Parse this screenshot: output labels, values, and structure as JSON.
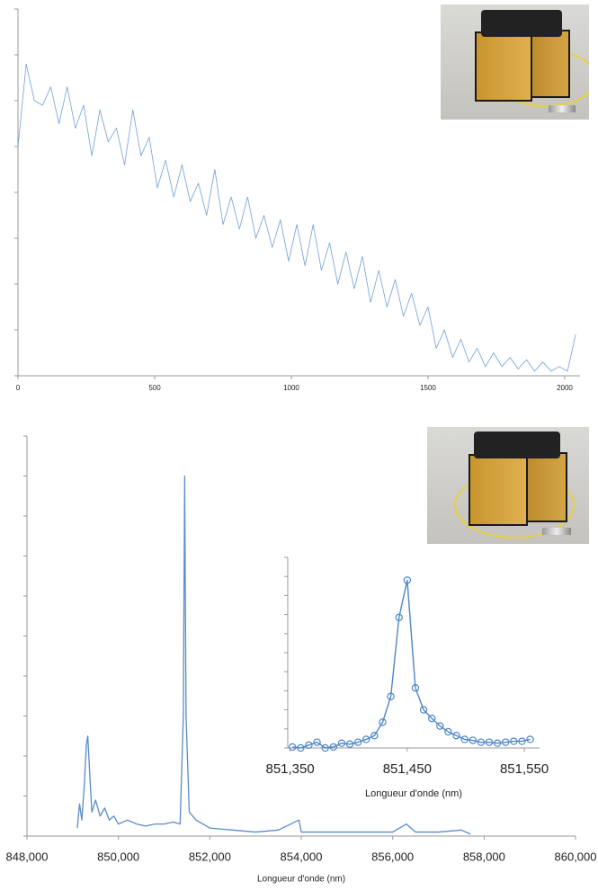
{
  "chart_data": [
    {
      "type": "line",
      "color": "#6f9fd8",
      "x": [
        0,
        30,
        60,
        90,
        120,
        150,
        180,
        210,
        240,
        270,
        300,
        330,
        360,
        390,
        420,
        450,
        480,
        510,
        540,
        570,
        600,
        630,
        660,
        690,
        720,
        750,
        780,
        810,
        840,
        870,
        900,
        930,
        960,
        990,
        1020,
        1050,
        1080,
        1110,
        1140,
        1170,
        1200,
        1230,
        1260,
        1290,
        1320,
        1350,
        1380,
        1410,
        1440,
        1470,
        1500,
        1530,
        1560,
        1590,
        1620,
        1650,
        1680,
        1710,
        1740,
        1770,
        1800,
        1830,
        1860,
        1890,
        1920,
        1950,
        1980,
        2010,
        2040
      ],
      "values": [
        5.0,
        6.8,
        6.0,
        5.9,
        6.3,
        5.5,
        6.3,
        5.4,
        5.9,
        4.8,
        5.8,
        5.1,
        5.4,
        4.6,
        5.8,
        4.8,
        5.2,
        4.1,
        4.7,
        3.9,
        4.6,
        3.8,
        4.2,
        3.5,
        4.5,
        3.3,
        3.9,
        3.2,
        3.9,
        3.0,
        3.5,
        2.8,
        3.4,
        2.5,
        3.3,
        2.4,
        3.3,
        2.3,
        2.9,
        2.0,
        2.7,
        1.9,
        2.6,
        1.6,
        2.3,
        1.5,
        2.1,
        1.3,
        1.8,
        1.1,
        1.5,
        0.6,
        1.0,
        0.4,
        0.8,
        0.3,
        0.6,
        0.2,
        0.5,
        0.2,
        0.4,
        0.15,
        0.35,
        0.1,
        0.3,
        0.1,
        0.2,
        0.1,
        0.9
      ],
      "xlim": [
        0,
        2056
      ],
      "xticks": [
        0,
        500,
        1000,
        1500,
        2000
      ],
      "ylim": [
        0,
        8
      ],
      "yticks": [
        0,
        1,
        2,
        3,
        4,
        5,
        6,
        7,
        8
      ]
    },
    {
      "type": "line",
      "color": "#5a8cc8",
      "x_label": "Longueur d'onde (nm)",
      "x": [
        849100,
        849150,
        849200,
        849250,
        849300,
        849330,
        849380,
        849420,
        849500,
        849600,
        849700,
        849800,
        849900,
        850000,
        850200,
        850400,
        850600,
        850800,
        851000,
        851200,
        851350,
        851420,
        851450,
        851480,
        851550,
        851700,
        852000,
        852500,
        853000,
        853500,
        853950,
        854000,
        854500,
        855000,
        855500,
        856000,
        856300,
        856500,
        857000,
        857500,
        857700
      ],
      "values": [
        0.2,
        0.8,
        0.4,
        1.2,
        2.3,
        2.5,
        1.4,
        0.6,
        0.9,
        0.5,
        0.7,
        0.4,
        0.5,
        0.3,
        0.4,
        0.3,
        0.25,
        0.3,
        0.3,
        0.35,
        0.3,
        3.0,
        9.0,
        3.0,
        0.6,
        0.4,
        0.2,
        0.15,
        0.1,
        0.15,
        0.4,
        0.1,
        0.1,
        0.1,
        0.1,
        0.1,
        0.3,
        0.1,
        0.1,
        0.15,
        0.05
      ],
      "xlim": [
        848000,
        860000
      ],
      "xticks": [
        {
          "value": 848000,
          "label": "848,000"
        },
        {
          "value": 850000,
          "label": "850,000"
        },
        {
          "value": 852000,
          "label": "852,000"
        },
        {
          "value": 854000,
          "label": "854,000"
        },
        {
          "value": 856000,
          "label": "856,000"
        },
        {
          "value": 858000,
          "label": "858,000"
        },
        {
          "value": 860000,
          "label": "860,000"
        }
      ],
      "ylim": [
        0,
        10
      ],
      "yticks": [
        0,
        1,
        2,
        3,
        4,
        5,
        6,
        7,
        8,
        9,
        10
      ]
    },
    {
      "type": "line",
      "color": "#4f86c6",
      "marker": "circle",
      "x_label": "Longueur d'onde (nm)",
      "x": [
        851352,
        851359,
        851366,
        851373,
        851380,
        851387,
        851394,
        851401,
        851408,
        851415,
        851422,
        851429,
        851436,
        851443,
        851450,
        851457,
        851464,
        851471,
        851478,
        851485,
        851492,
        851499,
        851506,
        851513,
        851520,
        851527,
        851534,
        851541,
        851548,
        851555
      ],
      "values": [
        0.05,
        0,
        0.15,
        0.3,
        0,
        0.05,
        0.25,
        0.2,
        0.3,
        0.45,
        0.65,
        1.35,
        2.7,
        6.85,
        8.8,
        3.15,
        2.0,
        1.55,
        1.15,
        0.85,
        0.65,
        0.45,
        0.4,
        0.3,
        0.3,
        0.25,
        0.3,
        0.35,
        0.35,
        0.45
      ],
      "xlim": [
        851348,
        851563
      ],
      "xticks": [
        {
          "value": 851350,
          "label": "851,350"
        },
        {
          "value": 851450,
          "label": "851,450"
        },
        {
          "value": 851550,
          "label": "851,550"
        }
      ],
      "ylim": [
        0,
        10
      ],
      "yticks": [
        0,
        1,
        2,
        3,
        4,
        5,
        6,
        7,
        8,
        9,
        10
      ]
    }
  ]
}
